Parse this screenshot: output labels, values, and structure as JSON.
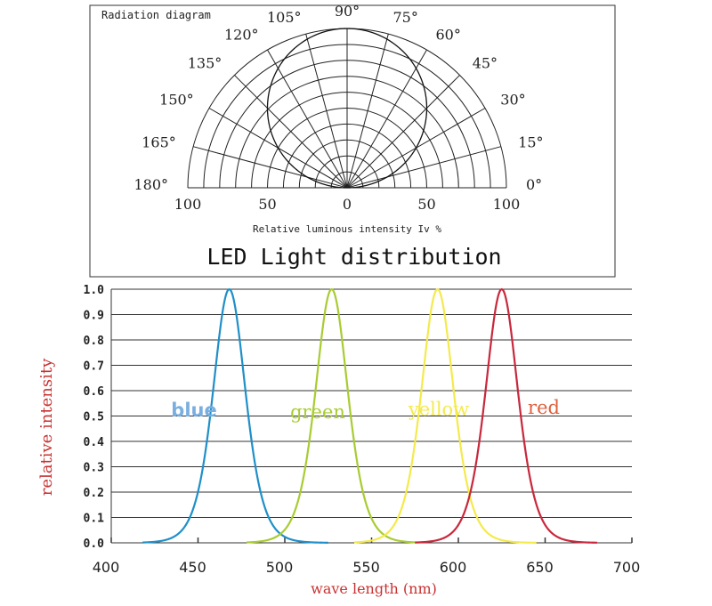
{
  "chart_data": [
    {
      "type": "polar",
      "panel_label": "Radiation diagram",
      "title": "LED Light distribution",
      "xlabel": "Relative luminous intensity Iv %",
      "angle_ticks": [
        "0°",
        "15°",
        "30°",
        "45°",
        "60°",
        "75°",
        "90°",
        "105°",
        "120°",
        "135°",
        "150°",
        "165°",
        "180°"
      ],
      "angle_values": [
        0,
        15,
        30,
        45,
        60,
        75,
        90,
        105,
        120,
        135,
        150,
        165,
        180
      ],
      "radial_tick_labels": [
        "100",
        "50",
        "0",
        "50",
        "100"
      ],
      "rlim": [
        0,
        100
      ],
      "grid": true,
      "series": [
        {
          "distribution": "cosine",
          "angles": [
            0,
            15,
            30,
            45,
            60,
            75,
            90,
            105,
            120,
            135,
            150,
            165,
            180
          ],
          "values": [
            0,
            26,
            50,
            71,
            87,
            97,
            100,
            97,
            87,
            71,
            50,
            26,
            0
          ]
        }
      ]
    },
    {
      "type": "line",
      "xlabel": "wave length (nm)",
      "ylabel": "relative intensity",
      "xlim": [
        400,
        700
      ],
      "ylim": [
        0,
        1.0
      ],
      "x_ticks": [
        "400",
        "450",
        "500",
        "550",
        "600",
        "650",
        "700"
      ],
      "y_ticks": [
        "0.0",
        "0.1",
        "0.2",
        "0.3",
        "0.4",
        "0.5",
        "0.6",
        "0.7",
        "0.8",
        "0.9",
        "1.0"
      ],
      "grid": true,
      "series": [
        {
          "name": "blue",
          "color": "#1f8fc8",
          "label_color": "#7aaee0",
          "peak": 468,
          "range": [
            418,
            525
          ]
        },
        {
          "name": "green",
          "color": "#a8cc32",
          "label_color": "#a8cc32",
          "peak": 527,
          "range": [
            478,
            580
          ]
        },
        {
          "name": "yellow",
          "color": "#f4ea4c",
          "label_color": "#f4ea4c",
          "peak": 588,
          "range": [
            540,
            645
          ]
        },
        {
          "name": "red",
          "color": "#c8283c",
          "label_color": "#e0603c",
          "peak": 625,
          "range": [
            575,
            680
          ]
        }
      ]
    }
  ]
}
